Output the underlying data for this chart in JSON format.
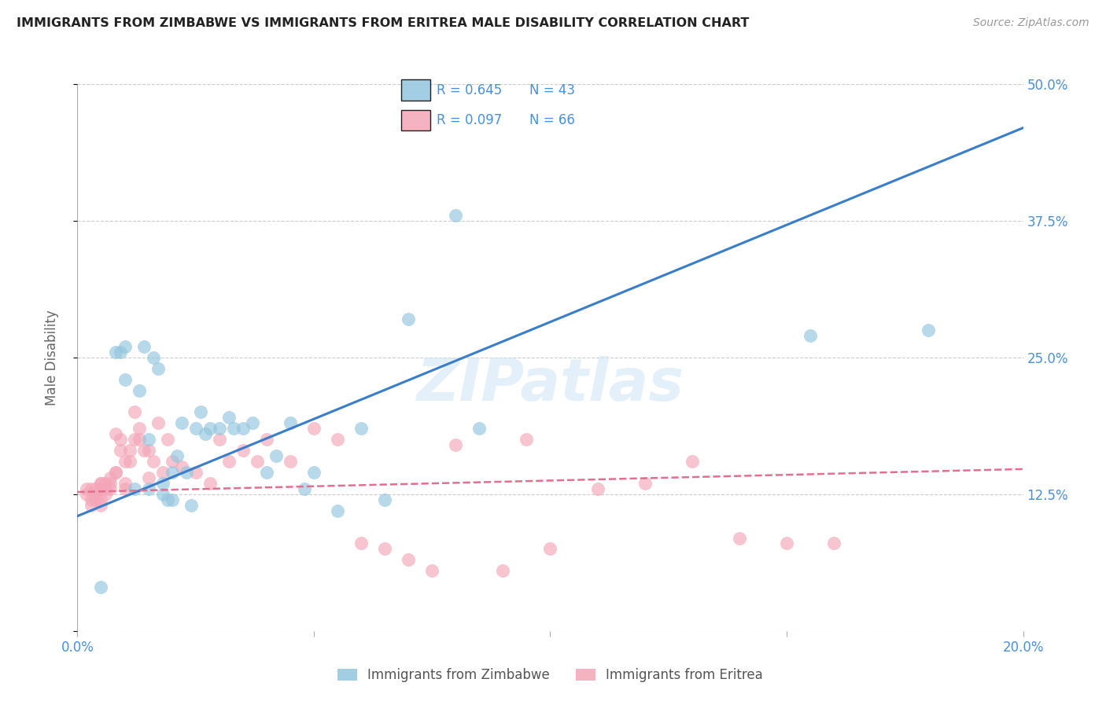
{
  "title": "IMMIGRANTS FROM ZIMBABWE VS IMMIGRANTS FROM ERITREA MALE DISABILITY CORRELATION CHART",
  "source": "Source: ZipAtlas.com",
  "ylabel_label": "Male Disability",
  "xlim": [
    0.0,
    0.2
  ],
  "ylim": [
    0.0,
    0.5
  ],
  "xticks": [
    0.0,
    0.05,
    0.1,
    0.15,
    0.2
  ],
  "xtick_labels": [
    "0.0%",
    "",
    "",
    "",
    "20.0%"
  ],
  "yticks": [
    0.0,
    0.125,
    0.25,
    0.375,
    0.5
  ],
  "ytick_labels": [
    "",
    "12.5%",
    "25.0%",
    "37.5%",
    "50.0%"
  ],
  "legend_r1": "R = 0.645",
  "legend_n1": "N = 43",
  "legend_r2": "R = 0.097",
  "legend_n2": "N = 66",
  "color_zimbabwe": "#92c5de",
  "color_eritrea": "#f4a6b8",
  "color_line_zimbabwe": "#3a7dc9",
  "color_line_eritrea": "#e07090",
  "background_color": "#ffffff",
  "watermark": "ZIPatlas",
  "zimbabwe_scatter_x": [
    0.005,
    0.008,
    0.009,
    0.01,
    0.01,
    0.012,
    0.013,
    0.014,
    0.015,
    0.015,
    0.016,
    0.017,
    0.018,
    0.018,
    0.019,
    0.02,
    0.02,
    0.021,
    0.022,
    0.023,
    0.024,
    0.025,
    0.026,
    0.027,
    0.028,
    0.03,
    0.032,
    0.033,
    0.035,
    0.037,
    0.04,
    0.042,
    0.045,
    0.048,
    0.05,
    0.055,
    0.06,
    0.065,
    0.07,
    0.08,
    0.085,
    0.155,
    0.18
  ],
  "zimbabwe_scatter_y": [
    0.04,
    0.255,
    0.255,
    0.26,
    0.23,
    0.13,
    0.22,
    0.26,
    0.175,
    0.13,
    0.25,
    0.24,
    0.125,
    0.135,
    0.12,
    0.145,
    0.12,
    0.16,
    0.19,
    0.145,
    0.115,
    0.185,
    0.2,
    0.18,
    0.185,
    0.185,
    0.195,
    0.185,
    0.185,
    0.19,
    0.145,
    0.16,
    0.19,
    0.13,
    0.145,
    0.11,
    0.185,
    0.12,
    0.285,
    0.38,
    0.185,
    0.27,
    0.275
  ],
  "eritrea_scatter_x": [
    0.002,
    0.002,
    0.003,
    0.003,
    0.003,
    0.004,
    0.004,
    0.004,
    0.005,
    0.005,
    0.005,
    0.005,
    0.005,
    0.006,
    0.006,
    0.006,
    0.007,
    0.007,
    0.007,
    0.008,
    0.008,
    0.008,
    0.009,
    0.009,
    0.01,
    0.01,
    0.01,
    0.011,
    0.011,
    0.012,
    0.012,
    0.013,
    0.013,
    0.014,
    0.015,
    0.015,
    0.016,
    0.017,
    0.018,
    0.019,
    0.02,
    0.022,
    0.025,
    0.028,
    0.03,
    0.032,
    0.035,
    0.038,
    0.04,
    0.045,
    0.05,
    0.055,
    0.06,
    0.065,
    0.07,
    0.075,
    0.08,
    0.09,
    0.095,
    0.1,
    0.11,
    0.12,
    0.13,
    0.14,
    0.15,
    0.16
  ],
  "eritrea_scatter_y": [
    0.125,
    0.13,
    0.12,
    0.115,
    0.13,
    0.12,
    0.125,
    0.13,
    0.135,
    0.135,
    0.13,
    0.12,
    0.115,
    0.135,
    0.13,
    0.125,
    0.14,
    0.135,
    0.13,
    0.145,
    0.18,
    0.145,
    0.175,
    0.165,
    0.135,
    0.155,
    0.13,
    0.155,
    0.165,
    0.2,
    0.175,
    0.185,
    0.175,
    0.165,
    0.14,
    0.165,
    0.155,
    0.19,
    0.145,
    0.175,
    0.155,
    0.15,
    0.145,
    0.135,
    0.175,
    0.155,
    0.165,
    0.155,
    0.175,
    0.155,
    0.185,
    0.175,
    0.08,
    0.075,
    0.065,
    0.055,
    0.17,
    0.055,
    0.175,
    0.075,
    0.13,
    0.135,
    0.155,
    0.085,
    0.08,
    0.08
  ],
  "zim_line_x": [
    0.0,
    0.2
  ],
  "zim_line_y": [
    0.105,
    0.46
  ],
  "eri_line_x": [
    0.0,
    0.2
  ],
  "eri_line_y": [
    0.127,
    0.148
  ]
}
